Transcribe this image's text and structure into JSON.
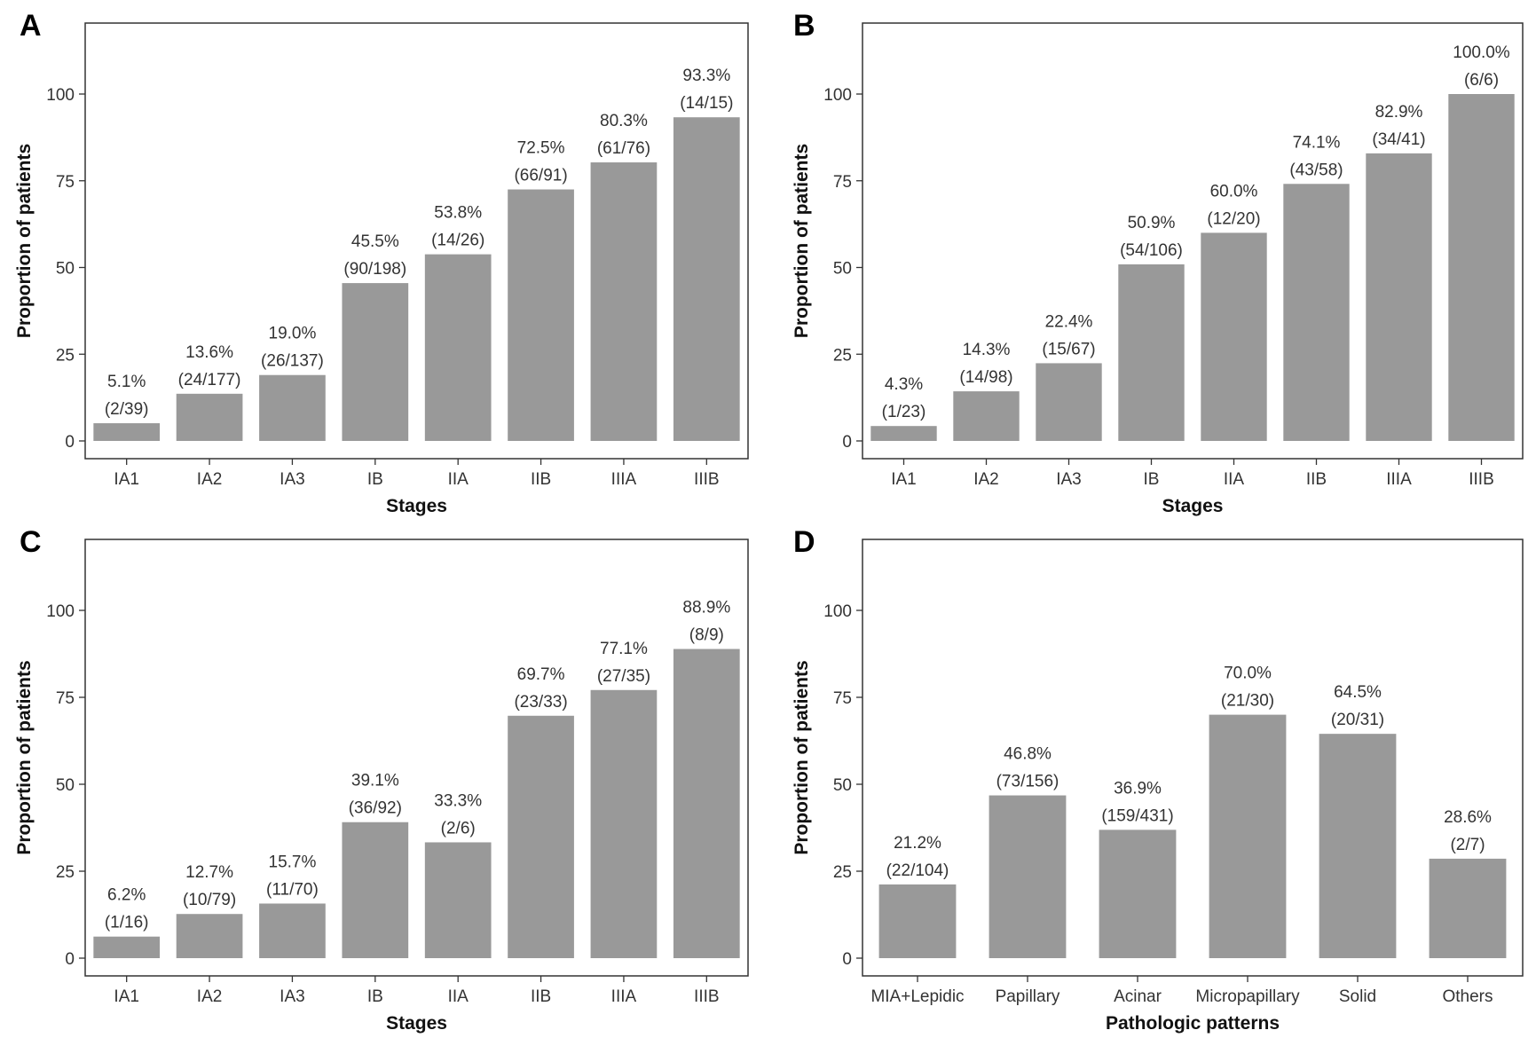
{
  "bar_color": "#999999",
  "frame_color": "#333333",
  "chart_data": [
    {
      "panel": "A",
      "type": "bar",
      "xlabel": "Stages",
      "ylabel": "Proportion of patients",
      "ylim": [
        0,
        120
      ],
      "yticks": [
        0,
        25,
        50,
        75,
        100
      ],
      "grid": false,
      "categories": [
        "IA1",
        "IA2",
        "IA3",
        "IB",
        "IIA",
        "IIB",
        "IIIA",
        "IIIB"
      ],
      "values": [
        5.1,
        13.6,
        19.0,
        45.5,
        53.8,
        72.5,
        80.3,
        93.3
      ],
      "labels": [
        "5.1%",
        "13.6%",
        "19.0%",
        "45.5%",
        "53.8%",
        "72.5%",
        "80.3%",
        "93.3%"
      ],
      "counts": [
        "(2/39)",
        "(24/177)",
        "(26/137)",
        "(90/198)",
        "(14/26)",
        "(66/91)",
        "(61/76)",
        "(14/15)"
      ]
    },
    {
      "panel": "B",
      "type": "bar",
      "xlabel": "Stages",
      "ylabel": "Proportion of patients",
      "ylim": [
        0,
        120
      ],
      "yticks": [
        0,
        25,
        50,
        75,
        100
      ],
      "grid": false,
      "categories": [
        "IA1",
        "IA2",
        "IA3",
        "IB",
        "IIA",
        "IIB",
        "IIIA",
        "IIIB"
      ],
      "values": [
        4.3,
        14.3,
        22.4,
        50.9,
        60.0,
        74.1,
        82.9,
        100.0
      ],
      "labels": [
        "4.3%",
        "14.3%",
        "22.4%",
        "50.9%",
        "60.0%",
        "74.1%",
        "82.9%",
        "100.0%"
      ],
      "counts": [
        "(1/23)",
        "(14/98)",
        "(15/67)",
        "(54/106)",
        "(12/20)",
        "(43/58)",
        "(34/41)",
        "(6/6)"
      ]
    },
    {
      "panel": "C",
      "type": "bar",
      "xlabel": "Stages",
      "ylabel": "Proportion of patients",
      "ylim": [
        0,
        120
      ],
      "yticks": [
        0,
        25,
        50,
        75,
        100
      ],
      "grid": false,
      "categories": [
        "IA1",
        "IA2",
        "IA3",
        "IB",
        "IIA",
        "IIB",
        "IIIA",
        "IIIB"
      ],
      "values": [
        6.2,
        12.7,
        15.7,
        39.1,
        33.3,
        69.7,
        77.1,
        88.9
      ],
      "labels": [
        "6.2%",
        "12.7%",
        "15.7%",
        "39.1%",
        "33.3%",
        "69.7%",
        "77.1%",
        "88.9%"
      ],
      "counts": [
        "(1/16)",
        "(10/79)",
        "(11/70)",
        "(36/92)",
        "(2/6)",
        "(23/33)",
        "(27/35)",
        "(8/9)"
      ]
    },
    {
      "panel": "D",
      "type": "bar",
      "xlabel": "Pathologic patterns",
      "ylabel": "Proportion of patients",
      "ylim": [
        0,
        120
      ],
      "yticks": [
        0,
        25,
        50,
        75,
        100
      ],
      "grid": false,
      "categories": [
        "MIA+Lepidic",
        "Papillary",
        "Acinar",
        "Micropapillary",
        "Solid",
        "Others"
      ],
      "values": [
        21.2,
        46.8,
        36.9,
        70.0,
        64.5,
        28.6
      ],
      "labels": [
        "21.2%",
        "46.8%",
        "36.9%",
        "70.0%",
        "64.5%",
        "28.6%"
      ],
      "counts": [
        "(22/104)",
        "(73/156)",
        "(159/431)",
        "(21/30)",
        "(20/31)",
        "(2/7)"
      ]
    }
  ]
}
